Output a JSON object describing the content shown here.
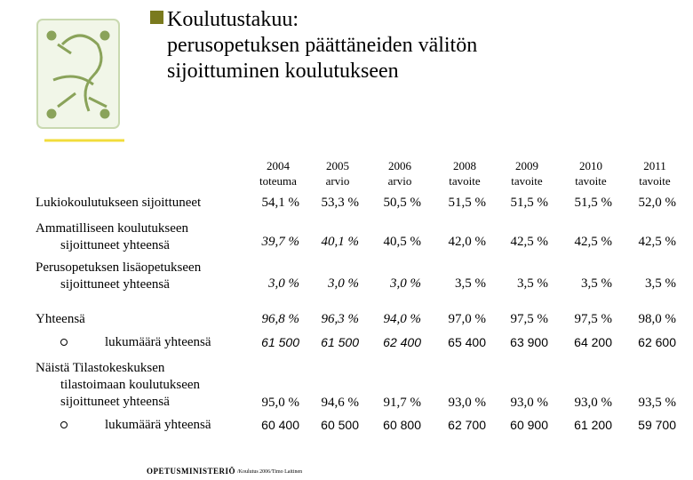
{
  "title": {
    "lines": [
      "Koulutustakuu:",
      "perusopetuksen päättäneiden välitön",
      "sijoittuminen koulutukseen"
    ]
  },
  "table": {
    "columns": [
      [
        "2004",
        "toteuma"
      ],
      [
        "2005",
        "arvio"
      ],
      [
        "2006",
        "arvio"
      ],
      [
        "2008",
        "tavoite"
      ],
      [
        "2009",
        "tavoite"
      ],
      [
        "2010",
        "tavoite"
      ],
      [
        "2011",
        "tavoite"
      ]
    ],
    "rows": [
      {
        "label": [
          "Lukiokoulutukseen sijoittuneet"
        ],
        "cells": [
          "54,1 %",
          "53,3 %",
          "50,5 %",
          "51,5 %",
          "51,5 %",
          "51,5 %",
          "52,0 %"
        ]
      },
      {
        "label": [
          "Ammatilliseen koulutukseen",
          "sijoittuneet yhteensä"
        ],
        "cells": [
          "39,7 %",
          "40,1 %",
          "40,5 %",
          "42,0 %",
          "42,5 %",
          "42,5 %",
          "42,5 %"
        ]
      },
      {
        "label": [
          "Perusopetuksen lisäopetukseen",
          "sijoittuneet yhteensä"
        ],
        "cells": [
          "3,0 %",
          "3,0 %",
          "3,0 %",
          "3,5 %",
          "3,5 %",
          "3,5 %",
          "3,5 %"
        ]
      },
      {
        "label": [
          "Yhteensä"
        ],
        "cells": [
          "96,8 %",
          "96,3 %",
          "94,0 %",
          "97,0 %",
          "97,5 %",
          "97,5 %",
          "98,0 %"
        ]
      },
      {
        "label": [
          "lukumäärä yhteensä"
        ],
        "cells": [
          "61 500",
          "61 500",
          "62 400",
          "65 400",
          "63 900",
          "64 200",
          "62 600"
        ]
      },
      {
        "label": [
          "Näistä Tilastokeskuksen",
          "tilastoimaan koulutukseen",
          "sijoittuneet yhteensä"
        ],
        "cells": [
          "95,0 %",
          "94,6 %",
          "91,7 %",
          "93,0 %",
          "93,0 %",
          "93,0 %",
          "93,5 %"
        ]
      },
      {
        "label": [
          "lukumäärä yhteensä"
        ],
        "cells": [
          "60 400",
          "60 500",
          "60 800",
          "62 700",
          "60 900",
          "61 200",
          "59 700"
        ]
      }
    ]
  },
  "footer": {
    "organization": "OPETUSMINISTERIÖ",
    "note": "/Koulutus 2006/Timo Laitinen"
  }
}
